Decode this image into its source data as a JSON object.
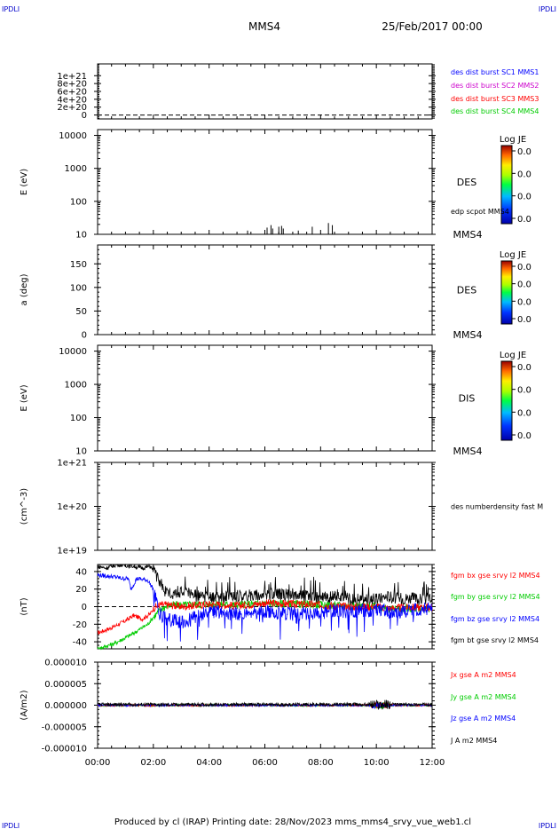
{
  "header": {
    "corner_left": "IPDLI",
    "corner_right": "IPDLI",
    "mission": "MMS4",
    "datetime": "25/Feb/2017 00:00"
  },
  "footer": {
    "text": "Produced by cl (IRAP)   Printing date: 28/Nov/2023   mms_mms4_srvy_vue_web1.cl",
    "corner_left": "IPDLI",
    "corner_right": "IPDLI"
  },
  "colors": {
    "blue": "#0000ff",
    "magenta": "#cc00cc",
    "red": "#ff0000",
    "green": "#00cc00",
    "black": "#000000"
  },
  "chart_data": [
    {
      "type": "line",
      "panel": "des-dist",
      "ylim": [
        -1e+20,
        1.3e+21
      ],
      "yticks": [
        0,
        2e+20,
        4e+20,
        6e+20,
        8e+20,
        1e+21
      ],
      "ytick_labels": [
        "0",
        "2e+20",
        "4e+20",
        "6e+20",
        "8e+20",
        "1e+21"
      ],
      "ylabel": "",
      "baseline": 0,
      "series": [
        {
          "name": "des dist burst SC1 MMS1",
          "color": "#0000ff"
        },
        {
          "name": "des dist burst SC2 MMS2",
          "color": "#cc00cc"
        },
        {
          "name": "des dist burst SC3 MMS3",
          "color": "#ff0000"
        },
        {
          "name": "des dist burst SC4 MMS4",
          "color": "#00cc00"
        }
      ]
    },
    {
      "type": "heatmap",
      "panel": "des-energy",
      "ylabel": "E (eV)",
      "ylog": true,
      "ylim": [
        10,
        15000
      ],
      "yticks": [
        10,
        100,
        1000,
        10000
      ],
      "ytick_labels": [
        "10",
        "100",
        "1000",
        "10000"
      ],
      "label": "DES",
      "sc": "MMS4",
      "colorbar": {
        "title": "Log JE",
        "ticks": [
          "0.0",
          "0.0",
          "0.0",
          "0.0"
        ]
      },
      "overlay": {
        "name": "edp scpot MMS4",
        "color": "#000000",
        "spikes": [
          [
            5.38,
            13
          ],
          [
            6.08,
            16
          ],
          [
            6.22,
            19
          ],
          [
            6.28,
            15
          ],
          [
            6.5,
            17
          ],
          [
            6.6,
            18
          ],
          [
            6.66,
            15
          ],
          [
            7.2,
            13
          ],
          [
            7.7,
            17
          ],
          [
            8.28,
            22
          ],
          [
            8.42,
            19
          ]
        ]
      }
    },
    {
      "type": "heatmap",
      "panel": "des-pitch",
      "ylabel": "a (deg)",
      "ylim": [
        0,
        190
      ],
      "yticks": [
        0,
        50,
        100,
        150
      ],
      "ytick_labels": [
        "0",
        "50",
        "100",
        "150"
      ],
      "label": "DES",
      "sc": "MMS4",
      "colorbar": {
        "title": "Log JE",
        "ticks": [
          "0.0",
          "0.0",
          "0.0",
          "0.0"
        ]
      }
    },
    {
      "type": "heatmap",
      "panel": "dis-energy",
      "ylabel": "E (eV)",
      "ylog": true,
      "ylim": [
        10,
        15000
      ],
      "yticks": [
        10,
        100,
        1000,
        10000
      ],
      "ytick_labels": [
        "10",
        "100",
        "1000",
        "10000"
      ],
      "label": "DIS",
      "sc": "MMS4",
      "colorbar": {
        "title": "Log JE",
        "ticks": [
          "0.0",
          "0.0",
          "0.0",
          "0.0"
        ]
      }
    },
    {
      "type": "line",
      "panel": "density",
      "ylabel": "(cm^-3)",
      "ylog": true,
      "ylim": [
        1e+19,
        1e+21
      ],
      "yticks": [
        1e+19,
        1e+20,
        1e+21
      ],
      "ytick_labels": [
        "1e+19",
        "1e+20",
        "1e+21"
      ],
      "series": [
        {
          "name": "des numberdensity fast M",
          "color": "#000000",
          "values": []
        }
      ]
    },
    {
      "type": "line",
      "panel": "fgm",
      "ylabel": "(nT)",
      "ylim": [
        -48,
        48
      ],
      "yticks": [
        -40,
        -20,
        0,
        20,
        40
      ],
      "ytick_labels": [
        "-40",
        "-20",
        "0",
        "20",
        "40"
      ],
      "baseline": 0,
      "series": [
        {
          "name": "fgm bx gse srvy l2 MMS4",
          "color": "#ff0000",
          "x": [
            0,
            0.5,
            1.0,
            1.3,
            1.6,
            1.9,
            2.0,
            2.2,
            2.6,
            3.0,
            4.0,
            5.0,
            6.0,
            7.0,
            8.0,
            9.0,
            10.0,
            10.5,
            11.0,
            11.5,
            12.0
          ],
          "values": [
            -30,
            -24,
            -16,
            -10,
            -14,
            -8,
            -2,
            2,
            2,
            0,
            3,
            1,
            4,
            3,
            2,
            0,
            0,
            -2,
            -1,
            -1,
            -1
          ]
        },
        {
          "name": "fgm by gse srvy l2 MMS4",
          "color": "#00cc00",
          "x": [
            0,
            0.3,
            0.6,
            0.9,
            1.2,
            1.5,
            1.8,
            2.0,
            2.3,
            2.6,
            3.0,
            4.0,
            5.0,
            6.0,
            7.0,
            8.0,
            9.0,
            10.0,
            10.5,
            11.0,
            11.5,
            12.0
          ],
          "values": [
            -48,
            -45,
            -42,
            -37,
            -32,
            -26,
            -20,
            -12,
            -2,
            2,
            2,
            3,
            2,
            4,
            3,
            2,
            1,
            0,
            -3,
            -2,
            -2,
            -2
          ]
        },
        {
          "name": "fgm bz gse srvy l2 MMS4",
          "color": "#0000ff",
          "x": [
            0,
            0.3,
            0.6,
            0.9,
            1.1,
            1.2,
            1.4,
            1.8,
            2.0,
            2.2,
            2.5,
            3.0,
            3.5,
            4.0,
            5.0,
            6.0,
            7.0,
            8.0,
            8.5,
            9.0,
            10.0,
            10.5,
            11.0,
            11.5,
            12.0
          ],
          "values": [
            36,
            35,
            34,
            32,
            32,
            20,
            32,
            30,
            20,
            -8,
            -14,
            -18,
            -12,
            -6,
            -8,
            -6,
            -8,
            -8,
            -5,
            -5,
            -4,
            -6,
            -4,
            -4,
            -2
          ]
        },
        {
          "name": "fgm bt gse srvy l2 MMS4",
          "color": "#000000",
          "x": [
            0,
            0.3,
            0.7,
            1.0,
            1.3,
            1.6,
            1.9,
            2.2,
            2.5,
            3.0,
            3.5,
            4.0,
            5.0,
            6.0,
            7.0,
            8.0,
            8.5,
            9.0,
            10.0,
            10.4,
            10.8,
            11.2,
            11.6,
            12.0
          ],
          "values": [
            46,
            44,
            48,
            47,
            46,
            44,
            46,
            30,
            14,
            18,
            12,
            10,
            12,
            14,
            14,
            10,
            12,
            8,
            8,
            12,
            9,
            10,
            8,
            10
          ]
        }
      ]
    },
    {
      "type": "line",
      "panel": "current",
      "ylabel": "(A/m2)",
      "ylim": [
        -1e-05,
        1e-05
      ],
      "yticks": [
        -1e-05,
        -5e-06,
        0,
        5e-06,
        1e-05
      ],
      "ytick_labels": [
        "-0.000010",
        "-0.000005",
        "0.000000",
        "0.000005",
        "0.000010"
      ],
      "xlim": [
        0,
        12
      ],
      "xticks": [
        0,
        2,
        4,
        6,
        8,
        10,
        12
      ],
      "xtick_labels": [
        "00:00",
        "02:00",
        "04:00",
        "06:00",
        "08:00",
        "10:00",
        "12:00"
      ],
      "series": [
        {
          "name": "Jx gse A m2 MMS4",
          "color": "#ff0000"
        },
        {
          "name": "Jy gse A m2 MMS4",
          "color": "#00cc00"
        },
        {
          "name": "Jz gse A m2 MMS4",
          "color": "#0000ff"
        },
        {
          "name": "J A m2 MMS4",
          "color": "#000000"
        }
      ]
    }
  ]
}
